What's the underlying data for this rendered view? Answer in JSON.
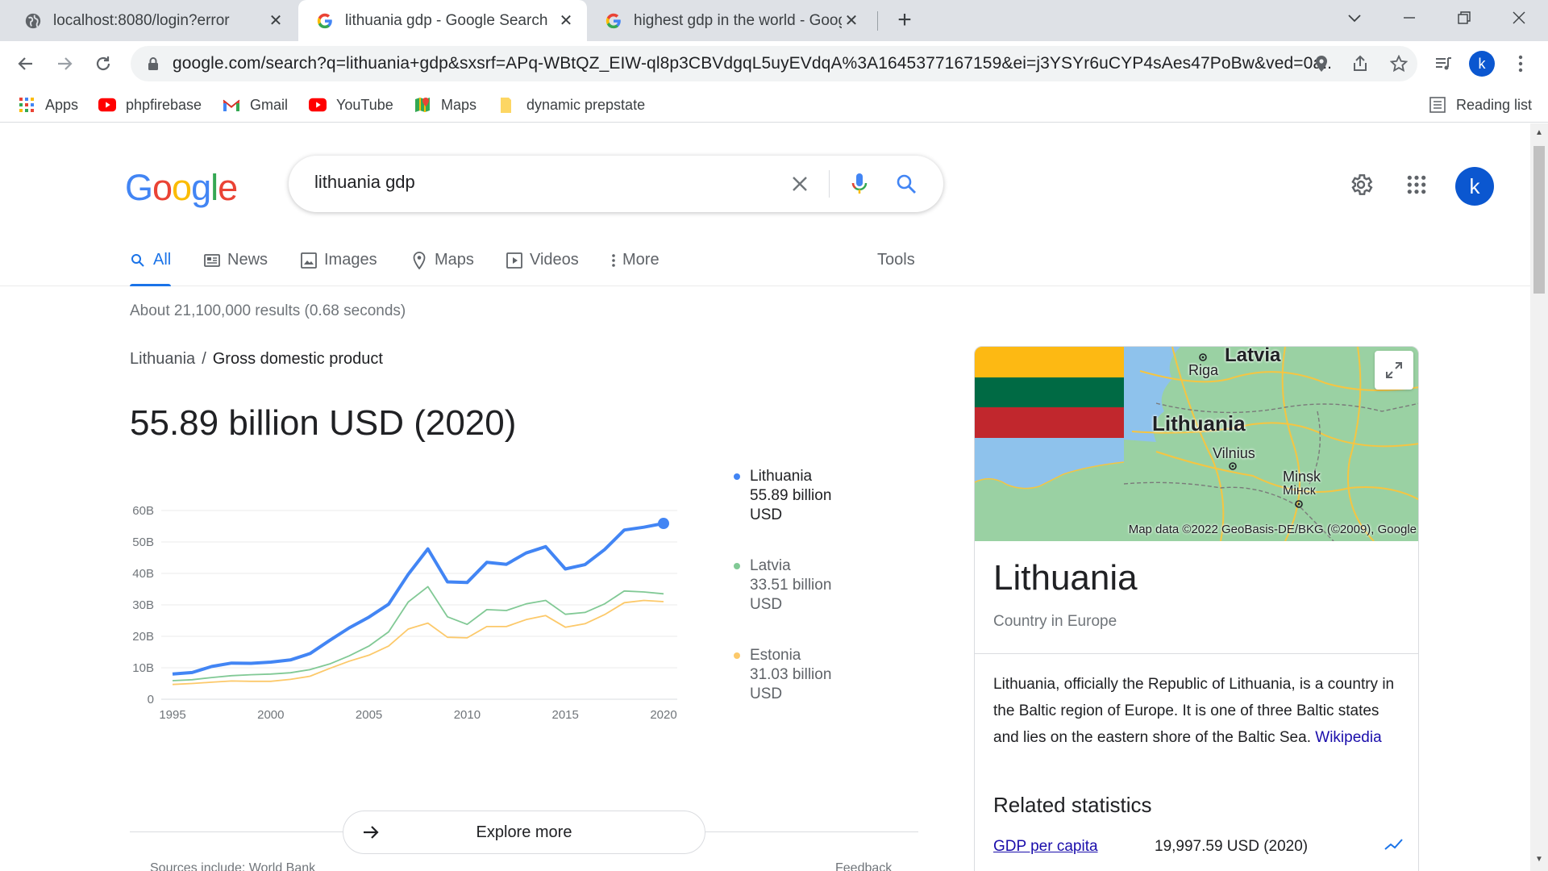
{
  "browser": {
    "tabs": [
      {
        "title": "localhost:8080/login?error",
        "favicon": "globe-icon",
        "active": false
      },
      {
        "title": "lithuania gdp - Google Search",
        "favicon": "google-g-icon",
        "active": true
      },
      {
        "title": "highest gdp in the world - Google Search",
        "favicon": "google-g-icon",
        "active": false
      }
    ],
    "url": "google.com/search?q=lithuania+gdp&sxsrf=APq-WBtQZ_EIW-ql8p3CBVdgqL5uyEVdqA%3A1645377167159&ei=j3YSYr6uCYP4sAes47PoBw&ved=0a...",
    "profile_initial": "k",
    "bookmarks": [
      {
        "label": "Apps",
        "icon": "apps-grid-icon"
      },
      {
        "label": "phpfirebase",
        "icon": "youtube-icon"
      },
      {
        "label": "Gmail",
        "icon": "gmail-icon"
      },
      {
        "label": "YouTube",
        "icon": "youtube-icon"
      },
      {
        "label": "Maps",
        "icon": "maps-icon"
      },
      {
        "label": "dynamic prepstate",
        "icon": "folder-icon"
      }
    ],
    "reading_list": "Reading list"
  },
  "search": {
    "query": "lithuania gdp",
    "avatar_initial": "k",
    "filters": [
      {
        "label": "All",
        "icon": "search-icon",
        "active": true
      },
      {
        "label": "News",
        "icon": "news-icon"
      },
      {
        "label": "Images",
        "icon": "image-icon"
      },
      {
        "label": "Maps",
        "icon": "map-pin-icon"
      },
      {
        "label": "Videos",
        "icon": "play-icon"
      },
      {
        "label": "More",
        "icon": "more-vert-icon"
      }
    ],
    "tools": "Tools",
    "stats": "About 21,100,000 results (0.68 seconds)"
  },
  "answer": {
    "breadcrumb_parent": "Lithuania",
    "breadcrumb_sep": "/",
    "breadcrumb_current": "Gross domestic product",
    "value": "55.89 billion USD (2020)",
    "explore_more": "Explore more",
    "sources": "Sources include: World Bank",
    "feedback": "Feedback"
  },
  "legend": [
    {
      "name": "Lithuania",
      "value": "55.89 billion USD",
      "color": "#4285f4"
    },
    {
      "name": "Latvia",
      "value": "33.51 billion USD",
      "color": "#81c995"
    },
    {
      "name": "Estonia",
      "value": "31.03 billion USD",
      "color": "#fcc96a"
    }
  ],
  "chart_data": {
    "type": "line",
    "x": [
      1995,
      1996,
      1997,
      1998,
      1999,
      2000,
      2001,
      2002,
      2003,
      2004,
      2005,
      2006,
      2007,
      2008,
      2009,
      2010,
      2011,
      2012,
      2013,
      2014,
      2015,
      2016,
      2017,
      2018,
      2019,
      2020
    ],
    "series": [
      {
        "name": "Lithuania",
        "color": "#4285f4",
        "values": [
          8.0,
          8.5,
          10.4,
          11.5,
          11.4,
          11.8,
          12.5,
          14.5,
          18.7,
          22.7,
          26.1,
          30.2,
          39.7,
          47.8,
          37.3,
          37.1,
          43.5,
          42.9,
          46.5,
          48.5,
          41.4,
          42.8,
          47.6,
          53.8,
          54.7,
          55.89
        ]
      },
      {
        "name": "Latvia",
        "color": "#81c995",
        "values": [
          5.9,
          6.2,
          6.9,
          7.5,
          7.8,
          8.0,
          8.4,
          9.4,
          11.2,
          13.8,
          16.9,
          21.4,
          30.9,
          35.8,
          26.2,
          23.8,
          28.5,
          28.2,
          30.3,
          31.4,
          27.0,
          27.6,
          30.3,
          34.4,
          34.1,
          33.51
        ]
      },
      {
        "name": "Estonia",
        "color": "#fcc96a",
        "values": [
          4.7,
          5.0,
          5.4,
          5.8,
          5.7,
          5.7,
          6.3,
          7.3,
          9.8,
          12.1,
          14.0,
          16.9,
          22.3,
          24.2,
          19.7,
          19.5,
          23.1,
          23.1,
          25.3,
          26.6,
          22.9,
          24.0,
          26.9,
          30.7,
          31.4,
          31.03
        ]
      }
    ],
    "ylim": [
      0,
      60
    ],
    "y_ticks": [
      "0",
      "10B",
      "20B",
      "30B",
      "40B",
      "50B",
      "60B"
    ],
    "x_ticks": [
      "1995",
      "2000",
      "2005",
      "2010",
      "2015",
      "2020"
    ],
    "grid": true
  },
  "knowledge_panel": {
    "title": "Lithuania",
    "subtitle": "Country in Europe",
    "description": "Lithuania, officially the Republic of Lithuania, is a country in the Baltic region of Europe. It is one of three Baltic states and lies on the eastern shore of the Baltic Sea.",
    "wiki_link": "Wikipedia",
    "flag_colors": [
      "#fdb913",
      "#006a44",
      "#c1272d"
    ],
    "map_labels": {
      "latvia": "Latvia",
      "riga": "Riga",
      "lithuania": "Lithuania",
      "vilnius": "Vilnius",
      "minsk": "Minsk",
      "minsk_cyr": "Мінск"
    },
    "map_credit": "Map data ©2022 GeoBasis-DE/BKG (©2009), Google",
    "related_title": "Related statistics",
    "related": [
      {
        "label": "GDP per capita",
        "value": "19,997.59 USD (2020)"
      }
    ]
  }
}
